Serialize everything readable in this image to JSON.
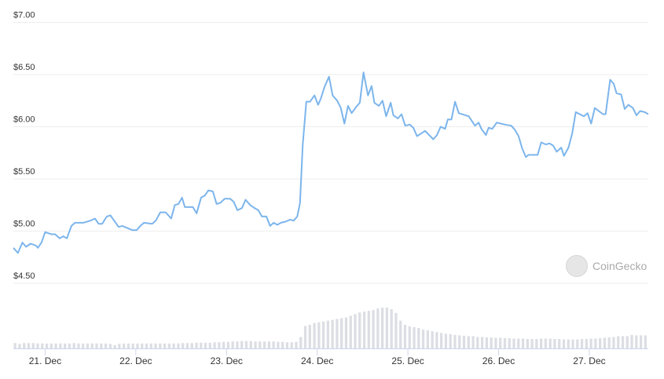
{
  "chart_data": {
    "type": "line",
    "title": "",
    "xlabel": "",
    "ylabel": "",
    "x_unit": "day of December",
    "xlim": [
      20.65,
      27.65
    ],
    "ylim": [
      4.5,
      7.0
    ],
    "y_ticks": [
      "$4.50",
      "$5.00",
      "$5.50",
      "$6.00",
      "$6.50",
      "$7.00"
    ],
    "y_tick_values": [
      4.5,
      5.0,
      5.5,
      6.0,
      6.5,
      7.0
    ],
    "x_ticks": [
      "21. Dec",
      "22. Dec",
      "23. Dec",
      "24. Dec",
      "25. Dec",
      "26. Dec",
      "27. Dec"
    ],
    "x_tick_values": [
      21,
      22,
      23,
      24,
      25,
      26,
      27
    ],
    "grid": true,
    "legend": "none",
    "colors": {
      "price_line": "#7cb5ec",
      "volume_bar": "#dcdee4",
      "grid": "#eeeeee",
      "axis": "#ccd6eb"
    },
    "watermark": "CoinGecko",
    "price": [
      [
        20.65,
        4.84
      ],
      [
        20.7,
        4.79
      ],
      [
        20.75,
        4.89
      ],
      [
        20.79,
        4.85
      ],
      [
        20.84,
        4.88
      ],
      [
        20.9,
        4.86
      ],
      [
        20.92,
        4.84
      ],
      [
        20.96,
        4.89
      ],
      [
        21.0,
        4.99
      ],
      [
        21.07,
        4.97
      ],
      [
        21.11,
        4.97
      ],
      [
        21.16,
        4.93
      ],
      [
        21.2,
        4.95
      ],
      [
        21.24,
        4.93
      ],
      [
        21.29,
        5.05
      ],
      [
        21.33,
        5.08
      ],
      [
        21.42,
        5.08
      ],
      [
        21.5,
        5.1
      ],
      [
        21.55,
        5.12
      ],
      [
        21.59,
        5.07
      ],
      [
        21.63,
        5.07
      ],
      [
        21.68,
        5.14
      ],
      [
        21.72,
        5.15
      ],
      [
        21.81,
        5.04
      ],
      [
        21.85,
        5.05
      ],
      [
        21.96,
        5.01
      ],
      [
        22.01,
        5.01
      ],
      [
        22.05,
        5.05
      ],
      [
        22.09,
        5.08
      ],
      [
        22.18,
        5.07
      ],
      [
        22.22,
        5.1
      ],
      [
        22.27,
        5.18
      ],
      [
        22.33,
        5.18
      ],
      [
        22.39,
        5.12
      ],
      [
        22.43,
        5.25
      ],
      [
        22.47,
        5.26
      ],
      [
        22.51,
        5.32
      ],
      [
        22.54,
        5.23
      ],
      [
        22.63,
        5.23
      ],
      [
        22.67,
        5.17
      ],
      [
        22.72,
        5.32
      ],
      [
        22.76,
        5.34
      ],
      [
        22.8,
        5.39
      ],
      [
        22.85,
        5.38
      ],
      [
        22.89,
        5.26
      ],
      [
        22.93,
        5.27
      ],
      [
        22.98,
        5.31
      ],
      [
        23.04,
        5.31
      ],
      [
        23.08,
        5.28
      ],
      [
        23.12,
        5.2
      ],
      [
        23.17,
        5.22
      ],
      [
        23.21,
        5.3
      ],
      [
        23.26,
        5.25
      ],
      [
        23.31,
        5.22
      ],
      [
        23.35,
        5.2
      ],
      [
        23.39,
        5.14
      ],
      [
        23.44,
        5.14
      ],
      [
        23.48,
        5.05
      ],
      [
        23.52,
        5.08
      ],
      [
        23.56,
        5.06
      ],
      [
        23.6,
        5.08
      ],
      [
        23.65,
        5.09
      ],
      [
        23.7,
        5.11
      ],
      [
        23.74,
        5.1
      ],
      [
        23.78,
        5.14
      ],
      [
        23.81,
        5.27
      ],
      [
        23.84,
        5.82
      ],
      [
        23.88,
        6.24
      ],
      [
        23.92,
        6.24
      ],
      [
        23.97,
        6.3
      ],
      [
        24.01,
        6.21
      ],
      [
        24.04,
        6.27
      ],
      [
        24.08,
        6.38
      ],
      [
        24.13,
        6.48
      ],
      [
        24.17,
        6.3
      ],
      [
        24.22,
        6.25
      ],
      [
        24.26,
        6.18
      ],
      [
        24.3,
        6.03
      ],
      [
        24.34,
        6.2
      ],
      [
        24.38,
        6.13
      ],
      [
        24.43,
        6.19
      ],
      [
        24.47,
        6.23
      ],
      [
        24.51,
        6.52
      ],
      [
        24.56,
        6.3
      ],
      [
        24.6,
        6.39
      ],
      [
        24.63,
        6.23
      ],
      [
        24.68,
        6.2
      ],
      [
        24.72,
        6.25
      ],
      [
        24.76,
        6.1
      ],
      [
        24.81,
        6.23
      ],
      [
        24.84,
        6.11
      ],
      [
        24.89,
        6.08
      ],
      [
        24.93,
        6.12
      ],
      [
        24.97,
        6.01
      ],
      [
        25.02,
        6.02
      ],
      [
        25.06,
        5.99
      ],
      [
        25.1,
        5.91
      ],
      [
        25.19,
        5.96
      ],
      [
        25.28,
        5.88
      ],
      [
        25.32,
        5.92
      ],
      [
        25.36,
        6.0
      ],
      [
        25.41,
        5.98
      ],
      [
        25.44,
        6.07
      ],
      [
        25.48,
        6.07
      ],
      [
        25.52,
        6.24
      ],
      [
        25.56,
        6.13
      ],
      [
        25.67,
        6.1
      ],
      [
        25.74,
        6.01
      ],
      [
        25.78,
        6.04
      ],
      [
        25.81,
        5.98
      ],
      [
        25.86,
        5.92
      ],
      [
        25.89,
        5.99
      ],
      [
        25.93,
        5.98
      ],
      [
        25.98,
        6.04
      ],
      [
        26.07,
        6.02
      ],
      [
        26.14,
        6.01
      ],
      [
        26.18,
        5.97
      ],
      [
        26.22,
        5.91
      ],
      [
        26.26,
        5.79
      ],
      [
        26.3,
        5.71
      ],
      [
        26.33,
        5.73
      ],
      [
        26.43,
        5.73
      ],
      [
        26.47,
        5.85
      ],
      [
        26.52,
        5.83
      ],
      [
        26.56,
        5.84
      ],
      [
        26.6,
        5.82
      ],
      [
        26.64,
        5.76
      ],
      [
        26.69,
        5.8
      ],
      [
        26.72,
        5.72
      ],
      [
        26.77,
        5.8
      ],
      [
        26.81,
        5.93
      ],
      [
        26.85,
        6.14
      ],
      [
        26.94,
        6.1
      ],
      [
        26.98,
        6.13
      ],
      [
        27.02,
        6.03
      ],
      [
        27.06,
        6.18
      ],
      [
        27.15,
        6.12
      ],
      [
        27.18,
        6.12
      ],
      [
        27.23,
        6.45
      ],
      [
        27.27,
        6.41
      ],
      [
        27.3,
        6.32
      ],
      [
        27.35,
        6.31
      ],
      [
        27.39,
        6.17
      ],
      [
        27.43,
        6.21
      ],
      [
        27.48,
        6.18
      ],
      [
        27.52,
        6.11
      ],
      [
        27.56,
        6.15
      ],
      [
        27.61,
        6.14
      ],
      [
        27.65,
        6.12
      ]
    ],
    "volume_relative": [
      13,
      11,
      13,
      13,
      13,
      12,
      12,
      12,
      12,
      12,
      12,
      12,
      12,
      13,
      12,
      12,
      12,
      12,
      12,
      12,
      12,
      11,
      8,
      11,
      12,
      12,
      12,
      12,
      12,
      12,
      12,
      12,
      12,
      12,
      12,
      12,
      12,
      13,
      13,
      13,
      14,
      14,
      14,
      14,
      15,
      15,
      16,
      16,
      17,
      17,
      18,
      18,
      18,
      17,
      17,
      17,
      17,
      17,
      16,
      16,
      15,
      15,
      16,
      28,
      55,
      58,
      62,
      64,
      66,
      68,
      70,
      72,
      74,
      76,
      80,
      84,
      88,
      90,
      92,
      94,
      98,
      100,
      100,
      96,
      87,
      68,
      58,
      54,
      52,
      50,
      46,
      44,
      42,
      40,
      38,
      36,
      35,
      33,
      32,
      31,
      30,
      30,
      28,
      28,
      27,
      27,
      26,
      26,
      25,
      25,
      24,
      24,
      24,
      23,
      23,
      23,
      24,
      24,
      24,
      23,
      23,
      22,
      22,
      22,
      22,
      23,
      23,
      24,
      24,
      25,
      26,
      27,
      28,
      30,
      30,
      30,
      33,
      32,
      32,
      32
    ]
  }
}
